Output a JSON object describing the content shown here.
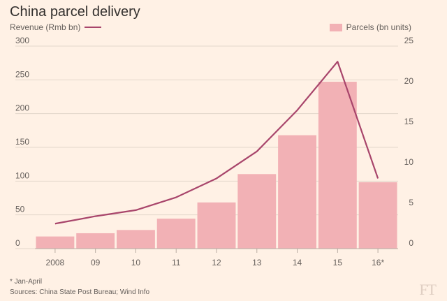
{
  "title": "China parcel delivery",
  "legend": {
    "revenue": "Revenue (Rmb bn)",
    "parcels": "Parcels (bn units)"
  },
  "footnote": "* Jan-April",
  "source": "Sources: China State Post Bureau; Wind Info",
  "logo": "FT",
  "colors": {
    "bar": "#f2b1b5",
    "line": "#a8456b",
    "background": "#fff1e5",
    "grid": "#e3d6cb"
  },
  "chart_data": {
    "type": "bar",
    "categories": [
      "2008",
      "09",
      "10",
      "11",
      "12",
      "13",
      "14",
      "15",
      "16*"
    ],
    "title": "China parcel delivery",
    "series": [
      {
        "name": "Parcels (bn units)",
        "type": "bar",
        "axis": "right",
        "values": [
          1.5,
          1.9,
          2.3,
          3.7,
          5.7,
          9.2,
          14.0,
          20.6,
          8.2
        ]
      },
      {
        "name": "Revenue (Rmb bn)",
        "type": "line",
        "axis": "left",
        "values": [
          37,
          48,
          57,
          76,
          104,
          144,
          205,
          277,
          104
        ]
      }
    ],
    "y_left": {
      "label": "Revenue (Rmb bn)",
      "range": [
        0,
        300
      ],
      "ticks": [
        0,
        50,
        100,
        150,
        200,
        250,
        300
      ]
    },
    "y_right": {
      "label": "Parcels (bn units)",
      "range": [
        0,
        25
      ],
      "ticks": [
        0,
        5,
        10,
        15,
        20,
        25
      ]
    },
    "grid": true,
    "legend_position": "top"
  }
}
